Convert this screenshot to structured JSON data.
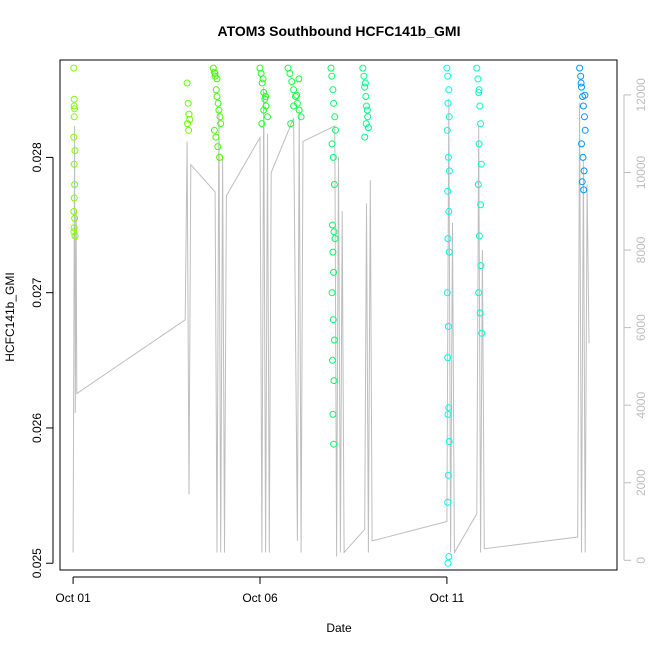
{
  "chart_data": {
    "type": "scatter",
    "title": "ATOM3 Southbound HCFC141b_GMI",
    "xlabel": "Date",
    "ylabel": "HCFC141b_GMI",
    "x_ticks": [
      {
        "value": 0,
        "label": "Oct 01"
      },
      {
        "value": 5,
        "label": "Oct 06"
      },
      {
        "value": 10,
        "label": "Oct 11"
      }
    ],
    "y_ticks": [
      {
        "value": 0.025,
        "label": "0.025"
      },
      {
        "value": 0.026,
        "label": "0.026"
      },
      {
        "value": 0.027,
        "label": "0.027"
      },
      {
        "value": 0.028,
        "label": "0.028"
      }
    ],
    "y2_ticks": [
      0,
      2000,
      4000,
      6000,
      8000,
      10000,
      12000
    ],
    "xlim": [
      -0.35,
      14.55
    ],
    "ylim": [
      0.02495,
      0.02872
    ],
    "y2lim": [
      -250,
      12900
    ],
    "grid": false,
    "series": [
      {
        "color": "#7fff00",
        "x": [
          0.02,
          0.03,
          0.04,
          0.03,
          0.02,
          0.05,
          0.03,
          0.04,
          0.03,
          0.02,
          0.04,
          0.03,
          0.05,
          0.02,
          0.03
        ],
        "y": [
          0.02866,
          0.02843,
          0.02836,
          0.0283,
          0.02815,
          0.02805,
          0.02795,
          0.0278,
          0.0277,
          0.0276,
          0.02755,
          0.02748,
          0.02742,
          0.02745,
          0.02838
        ]
      },
      {
        "color": "#66ff00",
        "x": [
          3.05,
          3.08,
          3.1,
          3.06,
          3.09,
          3.12
        ],
        "y": [
          0.02855,
          0.0284,
          0.02832,
          0.02825,
          0.0282,
          0.02828
        ]
      },
      {
        "color": "#44ff00",
        "x": [
          3.75,
          3.78,
          3.8,
          3.83,
          3.85,
          3.88,
          3.9,
          3.93,
          3.95,
          3.78,
          3.82,
          3.87,
          3.92,
          3.8,
          3.85
        ],
        "y": [
          0.02866,
          0.02863,
          0.0286,
          0.0285,
          0.02845,
          0.0284,
          0.02835,
          0.0283,
          0.02825,
          0.0282,
          0.02815,
          0.02808,
          0.028,
          0.02862,
          0.02858
        ]
      },
      {
        "color": "#22ff22",
        "x": [
          5.0,
          5.03,
          5.06,
          5.1,
          5.13,
          5.16,
          5.2,
          5.05,
          5.1,
          5.15,
          5.08
        ],
        "y": [
          0.02866,
          0.02862,
          0.02855,
          0.02848,
          0.02843,
          0.02838,
          0.0283,
          0.02825,
          0.02835,
          0.02845,
          0.02858
        ]
      },
      {
        "color": "#11ff44",
        "x": [
          5.75,
          5.8,
          5.85,
          5.9,
          5.95,
          6.0,
          6.05,
          6.1,
          5.82,
          5.9,
          5.98,
          6.04
        ],
        "y": [
          0.02866,
          0.02862,
          0.02856,
          0.0285,
          0.02845,
          0.0284,
          0.02835,
          0.0283,
          0.02825,
          0.02838,
          0.02846,
          0.02858
        ]
      },
      {
        "color": "#00ff66",
        "x": [
          6.9,
          6.92,
          6.95,
          6.97,
          7.0,
          7.02,
          6.93,
          6.96,
          6.99,
          6.94,
          6.98,
          7.01,
          6.95,
          6.97,
          6.93,
          6.96,
          6.99,
          6.94,
          6.98,
          6.95,
          6.97
        ],
        "y": [
          0.02866,
          0.0286,
          0.0285,
          0.0284,
          0.0283,
          0.0282,
          0.0281,
          0.028,
          0.0278,
          0.0275,
          0.02745,
          0.0274,
          0.0273,
          0.02715,
          0.027,
          0.0268,
          0.02665,
          0.0265,
          0.02635,
          0.0261,
          0.02588
        ]
      },
      {
        "color": "#00ff88",
        "x": [
          7.75,
          7.78,
          7.8,
          7.83,
          7.85,
          7.88,
          7.9,
          7.8,
          7.84,
          7.87,
          7.82
        ],
        "y": [
          0.02866,
          0.0286,
          0.02852,
          0.02845,
          0.02838,
          0.0283,
          0.02822,
          0.02815,
          0.02825,
          0.02835,
          0.02855
        ]
      },
      {
        "color": "#00ffee",
        "x": [
          10.0,
          10.02,
          10.05,
          10.03,
          10.06,
          10.01,
          10.04,
          10.07,
          10.02,
          10.05,
          10.03,
          10.06,
          10.01,
          10.04,
          10.02,
          10.05,
          10.03,
          10.06,
          10.04,
          10.02,
          10.05,
          10.03
        ],
        "y": [
          0.02866,
          0.0286,
          0.0285,
          0.0284,
          0.0283,
          0.0282,
          0.028,
          0.0279,
          0.02775,
          0.0276,
          0.0274,
          0.0273,
          0.027,
          0.02675,
          0.02652,
          0.02615,
          0.0261,
          0.0259,
          0.02565,
          0.02545,
          0.02505,
          0.025
        ]
      },
      {
        "color": "#00ffcc",
        "x": [
          10.8,
          10.83,
          10.85,
          10.88,
          10.9,
          10.86,
          10.92,
          10.84,
          10.9,
          10.87,
          10.91,
          10.85,
          10.89,
          10.93,
          10.86
        ],
        "y": [
          0.02866,
          0.02858,
          0.02848,
          0.02838,
          0.02825,
          0.0281,
          0.02795,
          0.0278,
          0.02765,
          0.02742,
          0.0272,
          0.027,
          0.02685,
          0.0267,
          0.0285
        ]
      },
      {
        "color": "#0099ff",
        "x": [
          13.55,
          13.58,
          13.6,
          13.63,
          13.65,
          13.68,
          13.7,
          13.6,
          13.64,
          13.67,
          13.62,
          13.66,
          13.59,
          13.69
        ],
        "y": [
          0.02866,
          0.0286,
          0.02852,
          0.02845,
          0.02838,
          0.0283,
          0.0282,
          0.0281,
          0.028,
          0.0279,
          0.02782,
          0.02776,
          0.02855,
          0.02846
        ]
      }
    ],
    "secondary_series": {
      "color": "#bebebe",
      "x": [
        0.0,
        0.02,
        0.04,
        0.06,
        0.08,
        0.1,
        3.0,
        3.05,
        3.1,
        3.15,
        3.8,
        3.85,
        3.9,
        3.95,
        4.0,
        4.05,
        4.1,
        5.0,
        5.05,
        5.1,
        5.15,
        5.2,
        5.25,
        5.3,
        5.9,
        6.0,
        6.05,
        6.1,
        6.15,
        7.0,
        7.05,
        7.1,
        7.15,
        7.2,
        7.25,
        7.8,
        7.85,
        7.9,
        7.95,
        8.0,
        10.0,
        10.05,
        10.1,
        10.15,
        10.2,
        10.8,
        10.85,
        10.9,
        10.95,
        11.0,
        13.5,
        13.55,
        13.6,
        13.65,
        13.7,
        13.75,
        13.8
      ],
      "y2": [
        200,
        5400,
        11200,
        3800,
        9000,
        4300,
        6200,
        10800,
        1700,
        10200,
        9500,
        200,
        11600,
        200,
        10400,
        200,
        9400,
        10900,
        200,
        12200,
        200,
        11000,
        200,
        10000,
        11400,
        500,
        11600,
        200,
        10800,
        11200,
        100,
        10400,
        200,
        9000,
        200,
        800,
        9200,
        200,
        9800,
        500,
        1000,
        11900,
        200,
        8700,
        200,
        1200,
        11200,
        200,
        8000,
        300,
        600,
        11800,
        200,
        10300,
        200,
        9700,
        5600
      ]
    }
  }
}
